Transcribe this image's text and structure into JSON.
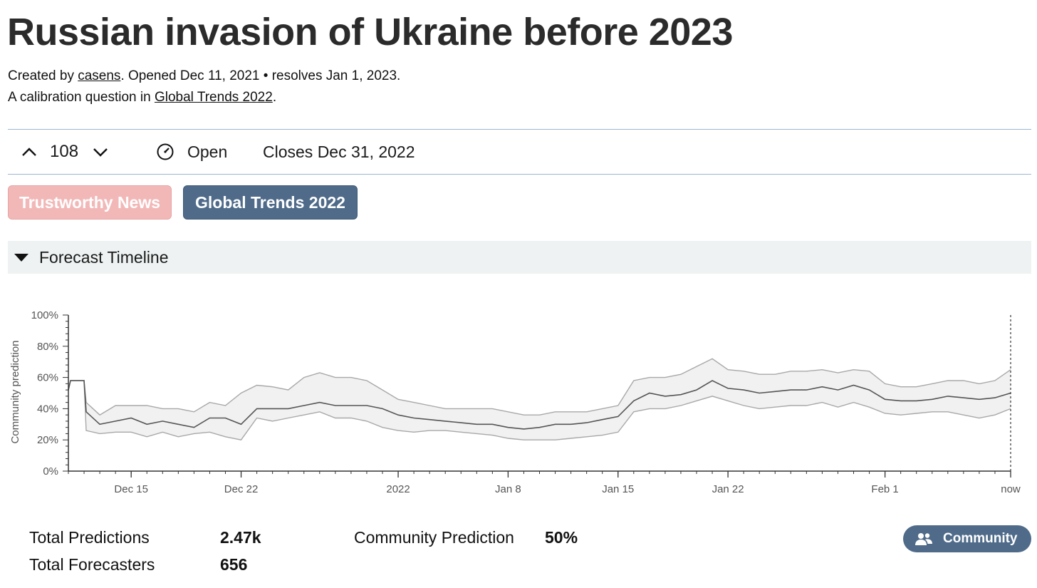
{
  "question": {
    "title": "Russian invasion of Ukraine before 2023",
    "created_by_prefix": "Created by",
    "author": "casens",
    "opened_text": ". Opened Dec 11, 2021 • resolves Jan 1, 2023.",
    "calibration_prefix": "A calibration question in",
    "project": "Global Trends 2022",
    "calibration_suffix": "."
  },
  "toolbar": {
    "vote_count": "108",
    "status": "Open",
    "closes": "Closes Dec 31, 2022",
    "icons": [
      "chevron-up-icon",
      "chevron-down-icon",
      "gauge-icon"
    ]
  },
  "tags": [
    {
      "label": "Trustworthy News",
      "color": "#f2b8b8"
    },
    {
      "label": "Global Trends 2022",
      "color": "#4f6b89"
    }
  ],
  "section": {
    "title": "Forecast Timeline"
  },
  "chart_data": {
    "type": "area",
    "ylabel": "Community prediction",
    "ylim": [
      0,
      100
    ],
    "y_ticks": [
      "0%",
      "20%",
      "40%",
      "60%",
      "80%",
      "100%"
    ],
    "x_range": [
      "2021-12-11",
      "2022-02-09"
    ],
    "x_ticks": [
      {
        "label": "Dec 15",
        "date": "2021-12-15"
      },
      {
        "label": "Dec 22",
        "date": "2021-12-22"
      },
      {
        "label": "2022",
        "date": "2022-01-01"
      },
      {
        "label": "Jan 8",
        "date": "2022-01-08"
      },
      {
        "label": "Jan 15",
        "date": "2022-01-15"
      },
      {
        "label": "Jan 22",
        "date": "2022-01-22"
      },
      {
        "label": "Feb 1",
        "date": "2022-02-01"
      },
      {
        "label": "now",
        "date": "2022-02-09"
      }
    ],
    "grid": false,
    "series": [
      {
        "x": [
          "2021-12-11",
          "2021-12-11",
          "2021-12-12",
          "2021-12-12",
          "2021-12-13",
          "2021-12-14",
          "2021-12-15",
          "2021-12-16",
          "2021-12-17",
          "2021-12-18",
          "2021-12-19",
          "2021-12-20",
          "2021-12-21",
          "2021-12-22",
          "2021-12-23",
          "2021-12-24",
          "2021-12-25",
          "2021-12-26",
          "2021-12-27",
          "2021-12-28",
          "2021-12-29",
          "2021-12-30",
          "2021-12-31",
          "2022-01-01",
          "2022-01-02",
          "2022-01-03",
          "2022-01-04",
          "2022-01-05",
          "2022-01-06",
          "2022-01-07",
          "2022-01-08",
          "2022-01-09",
          "2022-01-10",
          "2022-01-11",
          "2022-01-12",
          "2022-01-13",
          "2022-01-14",
          "2022-01-15",
          "2022-01-16",
          "2022-01-17",
          "2022-01-18",
          "2022-01-19",
          "2022-01-20",
          "2022-01-21",
          "2022-01-22",
          "2022-01-23",
          "2022-01-24",
          "2022-01-25",
          "2022-01-26",
          "2022-01-27",
          "2022-01-28",
          "2022-01-29",
          "2022-01-30",
          "2022-01-31",
          "2022-02-01",
          "2022-02-02",
          "2022-02-03",
          "2022-02-04",
          "2022-02-05",
          "2022-02-06",
          "2022-02-07",
          "2022-02-08",
          "2022-02-09"
        ],
        "median": [
          52,
          58,
          58,
          38,
          30,
          32,
          34,
          30,
          32,
          30,
          28,
          34,
          34,
          30,
          40,
          40,
          40,
          42,
          44,
          42,
          42,
          42,
          40,
          36,
          34,
          33,
          32,
          31,
          30,
          30,
          28,
          27,
          28,
          30,
          30,
          31,
          33,
          35,
          45,
          50,
          48,
          49,
          52,
          58,
          53,
          52,
          50,
          51,
          52,
          52,
          54,
          52,
          55,
          52,
          46,
          45,
          45,
          46,
          48,
          47,
          46,
          47,
          50
        ],
        "lower": [
          52,
          58,
          58,
          26,
          24,
          25,
          25,
          22,
          25,
          22,
          24,
          25,
          22,
          20,
          34,
          32,
          34,
          36,
          38,
          34,
          34,
          32,
          28,
          26,
          25,
          26,
          26,
          25,
          24,
          23,
          21,
          20,
          20,
          20,
          21,
          22,
          23,
          25,
          38,
          40,
          40,
          42,
          45,
          48,
          45,
          42,
          40,
          41,
          42,
          42,
          44,
          41,
          44,
          41,
          37,
          36,
          37,
          38,
          38,
          36,
          34,
          36,
          40
        ],
        "upper": [
          52,
          58,
          58,
          44,
          36,
          42,
          42,
          42,
          40,
          40,
          38,
          44,
          42,
          50,
          55,
          54,
          52,
          60,
          63,
          60,
          60,
          58,
          52,
          46,
          44,
          42,
          40,
          40,
          40,
          40,
          38,
          36,
          36,
          38,
          38,
          38,
          40,
          42,
          58,
          60,
          60,
          62,
          67,
          72,
          65,
          64,
          62,
          62,
          64,
          64,
          65,
          63,
          65,
          64,
          56,
          54,
          54,
          56,
          58,
          58,
          56,
          58,
          65
        ]
      }
    ]
  },
  "stats": {
    "total_predictions_label": "Total Predictions",
    "total_predictions_value": "2.47k",
    "total_forecasters_label": "Total Forecasters",
    "total_forecasters_value": "656",
    "community_prediction_label": "Community Prediction",
    "community_prediction_value": "50%"
  },
  "community_button": {
    "label": "Community",
    "icon": "users-icon",
    "color": "#4f6b89"
  }
}
